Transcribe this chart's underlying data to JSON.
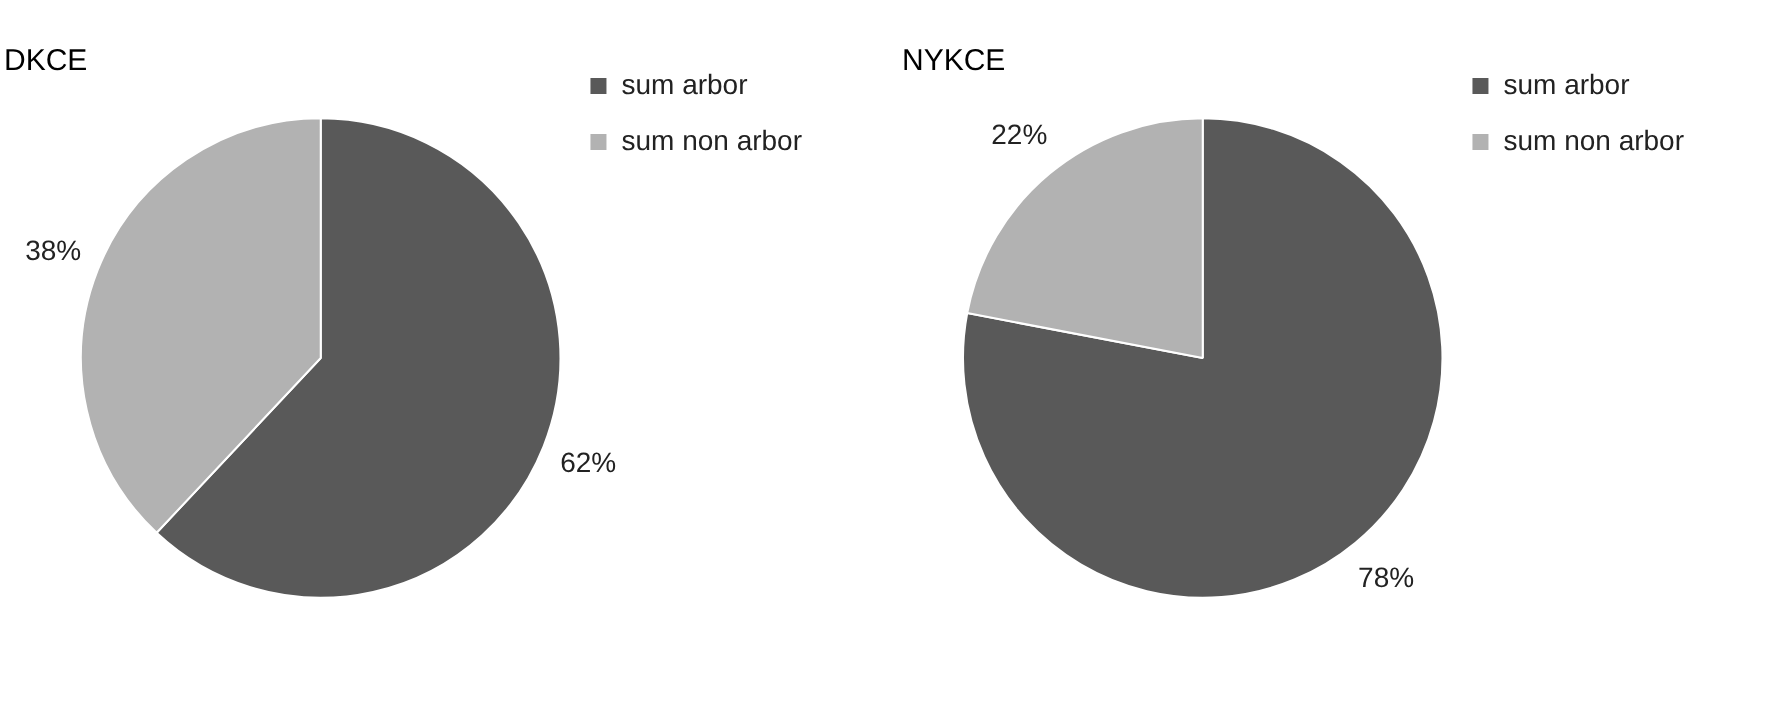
{
  "chart_data": [
    {
      "type": "pie",
      "title": "DKCE",
      "categories": [
        "sum arbor",
        "sum non arbor"
      ],
      "values": [
        62,
        38
      ],
      "value_labels": [
        "62%",
        "38%"
      ],
      "colors": [
        "#595959",
        "#b2b2b2"
      ],
      "legend": "top right"
    },
    {
      "type": "pie",
      "title": "NYKCE",
      "categories": [
        "sum arbor",
        "sum non arbor"
      ],
      "values": [
        78,
        22
      ],
      "value_labels": [
        "78%",
        "22%"
      ],
      "colors": [
        "#595959",
        "#b2b2b2"
      ],
      "legend": "top right"
    }
  ]
}
